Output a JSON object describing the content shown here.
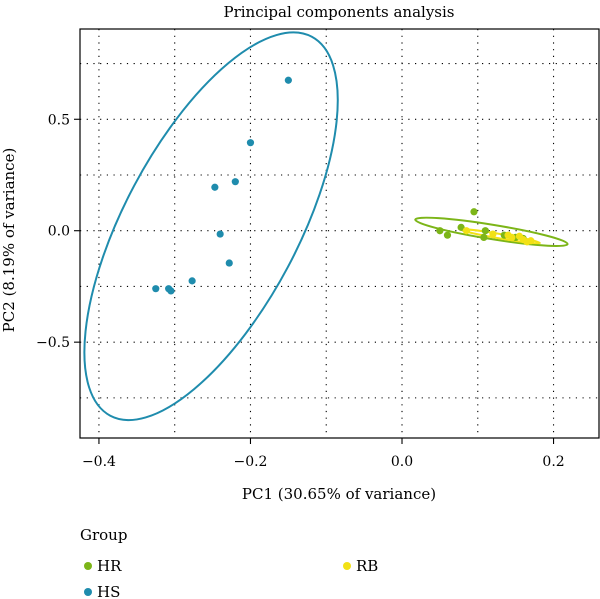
{
  "chart_data": {
    "type": "scatter",
    "title": "Principal components analysis",
    "xlabel": "PC1 (30.65% of variance)",
    "ylabel": "PC2 (8.19% of variance)",
    "xlim": [
      -0.425,
      0.26
    ],
    "ylim": [
      -0.93,
      0.905
    ],
    "x_ticks": [
      -0.4,
      -0.2,
      0.0,
      0.2
    ],
    "x_tick_labels": [
      "−0.4",
      "−0.2",
      "0.0",
      "0.2"
    ],
    "y_ticks": [
      0.5,
      0.0,
      -0.5
    ],
    "y_tick_labels": [
      "0.5",
      "0.0",
      "−0.5"
    ],
    "grid": true,
    "grid_x": [
      -0.4,
      -0.3,
      -0.2,
      -0.1,
      0.0,
      0.1,
      0.2
    ],
    "grid_y": [
      0.75,
      0.5,
      0.25,
      0.0,
      -0.25,
      -0.5,
      -0.75
    ],
    "legend": {
      "title": "Group",
      "placement": "bottom",
      "entries": [
        "HR",
        "HS",
        "RB"
      ]
    },
    "series": [
      {
        "name": "HR",
        "color": "#7cb518",
        "points": [
          [
            0.095,
            0.085
          ],
          [
            0.078,
            0.015
          ],
          [
            0.05,
            0.0
          ],
          [
            0.06,
            -0.02
          ],
          [
            0.11,
            0.0
          ],
          [
            0.108,
            -0.03
          ],
          [
            0.135,
            -0.02
          ],
          [
            0.15,
            -0.03
          ],
          [
            0.16,
            -0.035
          ]
        ],
        "ellipse": {
          "center": [
            0.118,
            -0.005
          ],
          "points": [
            [
              0.017,
              0.04
            ],
            [
              0.218,
              -0.07
            ],
            [
              0.119,
              0.027
            ],
            [
              0.117,
              -0.037
            ]
          ]
        }
      },
      {
        "name": "HS",
        "color": "#1f8cad",
        "points": [
          [
            -0.15,
            0.675
          ],
          [
            -0.2,
            0.395
          ],
          [
            -0.22,
            0.22
          ],
          [
            -0.247,
            0.195
          ],
          [
            -0.24,
            -0.015
          ],
          [
            -0.228,
            -0.145
          ],
          [
            -0.277,
            -0.225
          ],
          [
            -0.308,
            -0.26
          ],
          [
            -0.305,
            -0.27
          ],
          [
            -0.325,
            -0.26
          ]
        ],
        "ellipse": {
          "center": [
            -0.252,
            0.02
          ],
          "points": [
            [
              -0.119,
              0.87
            ],
            [
              -0.385,
              -0.83
            ],
            [
              -0.226,
              0.4
            ],
            [
              -0.278,
              -0.36
            ]
          ]
        }
      },
      {
        "name": "RB",
        "color": "#f2e116",
        "points": [
          [
            0.085,
            0.0
          ],
          [
            0.12,
            -0.015
          ],
          [
            0.14,
            -0.02
          ],
          [
            0.145,
            -0.03
          ],
          [
            0.155,
            -0.025
          ],
          [
            0.16,
            -0.04
          ],
          [
            0.165,
            -0.05
          ],
          [
            0.17,
            -0.045
          ]
        ],
        "ellipse": {
          "center": [
            0.13,
            -0.025
          ],
          "points": [
            [
              0.078,
              0.005
            ],
            [
              0.182,
              -0.055
            ],
            [
              0.13,
              -0.015
            ],
            [
              0.13,
              -0.035
            ]
          ]
        }
      }
    ]
  }
}
